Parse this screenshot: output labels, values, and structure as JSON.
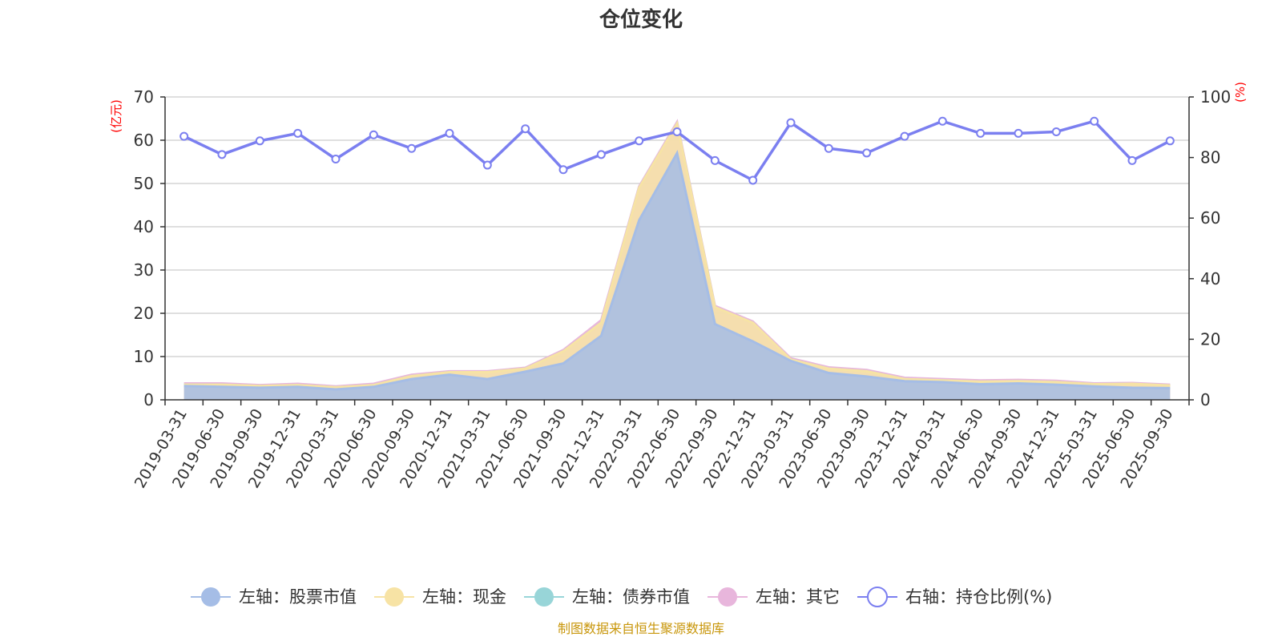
{
  "chart_data": {
    "type": "area",
    "title": "仓位变化",
    "left_axis": {
      "unit": "(亿元)",
      "ticks": [
        0,
        10,
        20,
        30,
        40,
        50,
        60,
        70
      ],
      "ylim": [
        0,
        70
      ]
    },
    "right_axis": {
      "unit": "(%)",
      "ticks": [
        0,
        20,
        40,
        60,
        80,
        100
      ],
      "ylim": [
        0,
        100
      ]
    },
    "categories": [
      "2019-03-31",
      "2019-06-30",
      "2019-09-30",
      "2019-12-31",
      "2020-03-31",
      "2020-06-30",
      "2020-09-30",
      "2020-12-31",
      "2021-03-31",
      "2021-06-30",
      "2021-09-30",
      "2021-12-31",
      "2022-03-31",
      "2022-06-30",
      "2022-09-30",
      "2022-12-31",
      "2023-03-31",
      "2023-06-30",
      "2023-09-30",
      "2023-12-31",
      "2024-03-31",
      "2024-06-30",
      "2024-09-30",
      "2024-12-31",
      "2025-03-31",
      "2025-06-30",
      "2025-09-30"
    ],
    "series": [
      {
        "name": "左轴：股票市值",
        "axis": "left",
        "kind": "stacked-area",
        "color": "#a5bde6",
        "values": [
          3.2,
          3.0,
          2.8,
          3.0,
          2.4,
          3.0,
          4.8,
          5.8,
          4.8,
          6.5,
          8.4,
          14.8,
          41.5,
          57.0,
          17.5,
          13.5,
          9.0,
          6.2,
          5.4,
          4.3,
          4.1,
          3.6,
          3.8,
          3.5,
          3.1,
          2.8,
          2.7
        ]
      },
      {
        "name": "左轴：现金",
        "axis": "left",
        "kind": "stacked-area",
        "color": "#f7e3a5",
        "values": [
          0.3,
          0.5,
          0.4,
          0.4,
          0.5,
          0.4,
          0.7,
          0.6,
          1.6,
          0.7,
          2.8,
          3.0,
          7.5,
          6.8,
          3.9,
          4.3,
          0.3,
          1.0,
          1.2,
          0.5,
          0.4,
          0.6,
          0.5,
          0.6,
          0.5,
          0.9,
          0.6
        ]
      },
      {
        "name": "左轴：债券市值",
        "axis": "left",
        "kind": "stacked-area",
        "color": "#98d5d8",
        "values": [
          0,
          0,
          0,
          0,
          0,
          0,
          0,
          0,
          0,
          0,
          0,
          0,
          0,
          0,
          0,
          0,
          0,
          0,
          0,
          0,
          0,
          0,
          0,
          0,
          0,
          0,
          0
        ]
      },
      {
        "name": "左轴：其它",
        "axis": "left",
        "kind": "stacked-area",
        "color": "#e8b6dc",
        "values": [
          0.3,
          0.3,
          0.2,
          0.3,
          0.2,
          0.3,
          0.3,
          0.2,
          0.2,
          0.2,
          0.3,
          0.6,
          0.3,
          0.4,
          0.3,
          0.3,
          0.3,
          0.3,
          0.3,
          0.3,
          0.3,
          0.3,
          0.3,
          0.3,
          0.2,
          0.2,
          0.2
        ]
      },
      {
        "name": "右轴：持仓比例(%)",
        "axis": "right",
        "kind": "line",
        "color": "#7b7ff0",
        "values": [
          87.0,
          81.0,
          85.5,
          88.0,
          79.5,
          87.5,
          83.0,
          88.0,
          77.5,
          89.5,
          76.0,
          81.0,
          85.5,
          88.5,
          79.0,
          72.5,
          91.5,
          83.0,
          81.5,
          87.0,
          92.0,
          88.0,
          88.0,
          88.5,
          92.0,
          79.0,
          85.5
        ]
      }
    ]
  },
  "footer": {
    "source": "制图数据来自恒生聚源数据库"
  }
}
